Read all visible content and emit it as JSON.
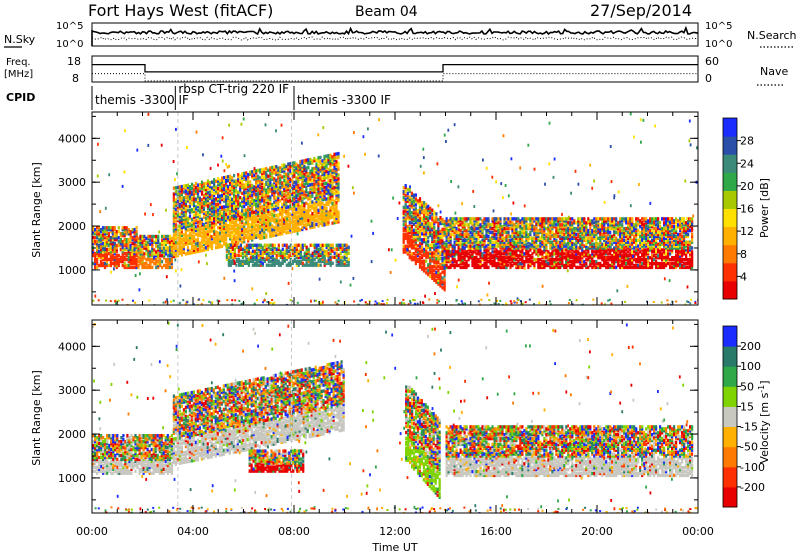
{
  "header": {
    "station": "Fort Hays West (fitACF)",
    "beam": "Beam 04",
    "date": "27/Sep/2014"
  },
  "top_panels": {
    "nsky_label": "N.Sky",
    "nsky_ticks": [
      "10^5",
      "10^0"
    ],
    "nsearch_label": "N.Search",
    "nsearch_ticks": [
      "10^5",
      "10^0"
    ],
    "freq_label_1": "Freq.",
    "freq_label_2": "[MHz]",
    "freq_ticks": [
      "18",
      "8"
    ],
    "nave_label": "Nave",
    "nave_ticks": [
      "60",
      "0"
    ],
    "cpid_label": "CPID",
    "cpid_segments": [
      {
        "label": "themis -3300 IF",
        "start_h": 0.0,
        "end_h": 3.2
      },
      {
        "label": "rbsp CT-trig 220 IF",
        "start_h": 3.3,
        "end_h": 7.9
      },
      {
        "label": "themis -3300 IF",
        "start_h": 8.0,
        "end_h": 24.0
      }
    ],
    "freq_mhz_steps": [
      {
        "start_h": 0.0,
        "end_h": 2.1,
        "value": 14.7
      },
      {
        "start_h": 2.1,
        "end_h": 13.9,
        "value": 11.9
      },
      {
        "start_h": 13.9,
        "end_h": 24.0,
        "value": 14.7
      }
    ]
  },
  "chart_data": [
    {
      "type": "heatmap",
      "name": "power-panel",
      "ylabel": "Slant Range [km]",
      "yticks": [
        "1000",
        "2000",
        "3000",
        "4000"
      ],
      "ylim": [
        200,
        4600
      ],
      "xlim_hours": [
        0,
        24
      ],
      "colorbar_label": "Power [dB]",
      "colorbar_ticks": [
        "4",
        "8",
        "12",
        "16",
        "20",
        "24",
        "28"
      ],
      "colorbar_colors": [
        "#1a2cff",
        "#2b4fa8",
        "#3b8a7a",
        "#2fa84a",
        "#a8c800",
        "#ffe000",
        "#ffb000",
        "#ff7a00",
        "#ff3000",
        "#e80000"
      ],
      "bands": [
        {
          "t0": 0.0,
          "t1": 1.8,
          "r0": 1050,
          "r1": 2000,
          "peak": "#ff3000"
        },
        {
          "t0": 1.8,
          "t1": 3.2,
          "r0": 1050,
          "r1": 1800,
          "peak": "#ff7a00"
        },
        {
          "t0": 3.2,
          "t1": 9.8,
          "r0": 1700,
          "r1": 3300,
          "peak": "#ffb000"
        },
        {
          "t0": 5.3,
          "t1": 10.2,
          "r0": 1100,
          "r1": 1600,
          "peak": "#3b8a7a"
        },
        {
          "t0": 12.3,
          "t1": 14.0,
          "r0": 900,
          "r1": 2500,
          "peak": "#ff3000"
        },
        {
          "t0": 14.0,
          "t1": 23.8,
          "r0": 1050,
          "r1": 2200,
          "peak": "#e80000"
        }
      ]
    },
    {
      "type": "heatmap",
      "name": "velocity-panel",
      "ylabel": "Slant Range [km]",
      "yticks": [
        "1000",
        "2000",
        "3000",
        "4000"
      ],
      "ylim": [
        200,
        4600
      ],
      "xlim_hours": [
        0,
        24
      ],
      "xlabel": "Time UT",
      "xticks": [
        "00:00",
        "04:00",
        "08:00",
        "12:00",
        "16:00",
        "20:00",
        "00:00"
      ],
      "colorbar_label_1": "Velocity [m s",
      "colorbar_label_sup": "-1",
      "colorbar_label_2": "]",
      "colorbar_ticks": [
        "200",
        "100",
        "50",
        "15",
        "-15",
        "-50",
        "-100",
        "-200"
      ],
      "colorbar_colors": [
        "#1a2cff",
        "#2a7a6a",
        "#2fa84a",
        "#7fd400",
        "#c8c8c0",
        "#ffb000",
        "#ff7a00",
        "#ff3000",
        "#e80000"
      ],
      "bands": [
        {
          "t0": 0.0,
          "t1": 3.2,
          "r0": 1100,
          "r1": 2000,
          "peak": "#c8c8c0"
        },
        {
          "t0": 3.2,
          "t1": 10.0,
          "r0": 1700,
          "r1": 3300,
          "peak": "#c8c8c0"
        },
        {
          "t0": 6.2,
          "t1": 8.4,
          "r0": 1150,
          "r1": 1650,
          "peak": "#e80000"
        },
        {
          "t0": 12.4,
          "t1": 13.8,
          "r0": 900,
          "r1": 2700,
          "peak": "#7fd400"
        },
        {
          "t0": 14.0,
          "t1": 23.8,
          "r0": 1050,
          "r1": 2200,
          "peak": "#c8c8c0"
        }
      ]
    }
  ]
}
